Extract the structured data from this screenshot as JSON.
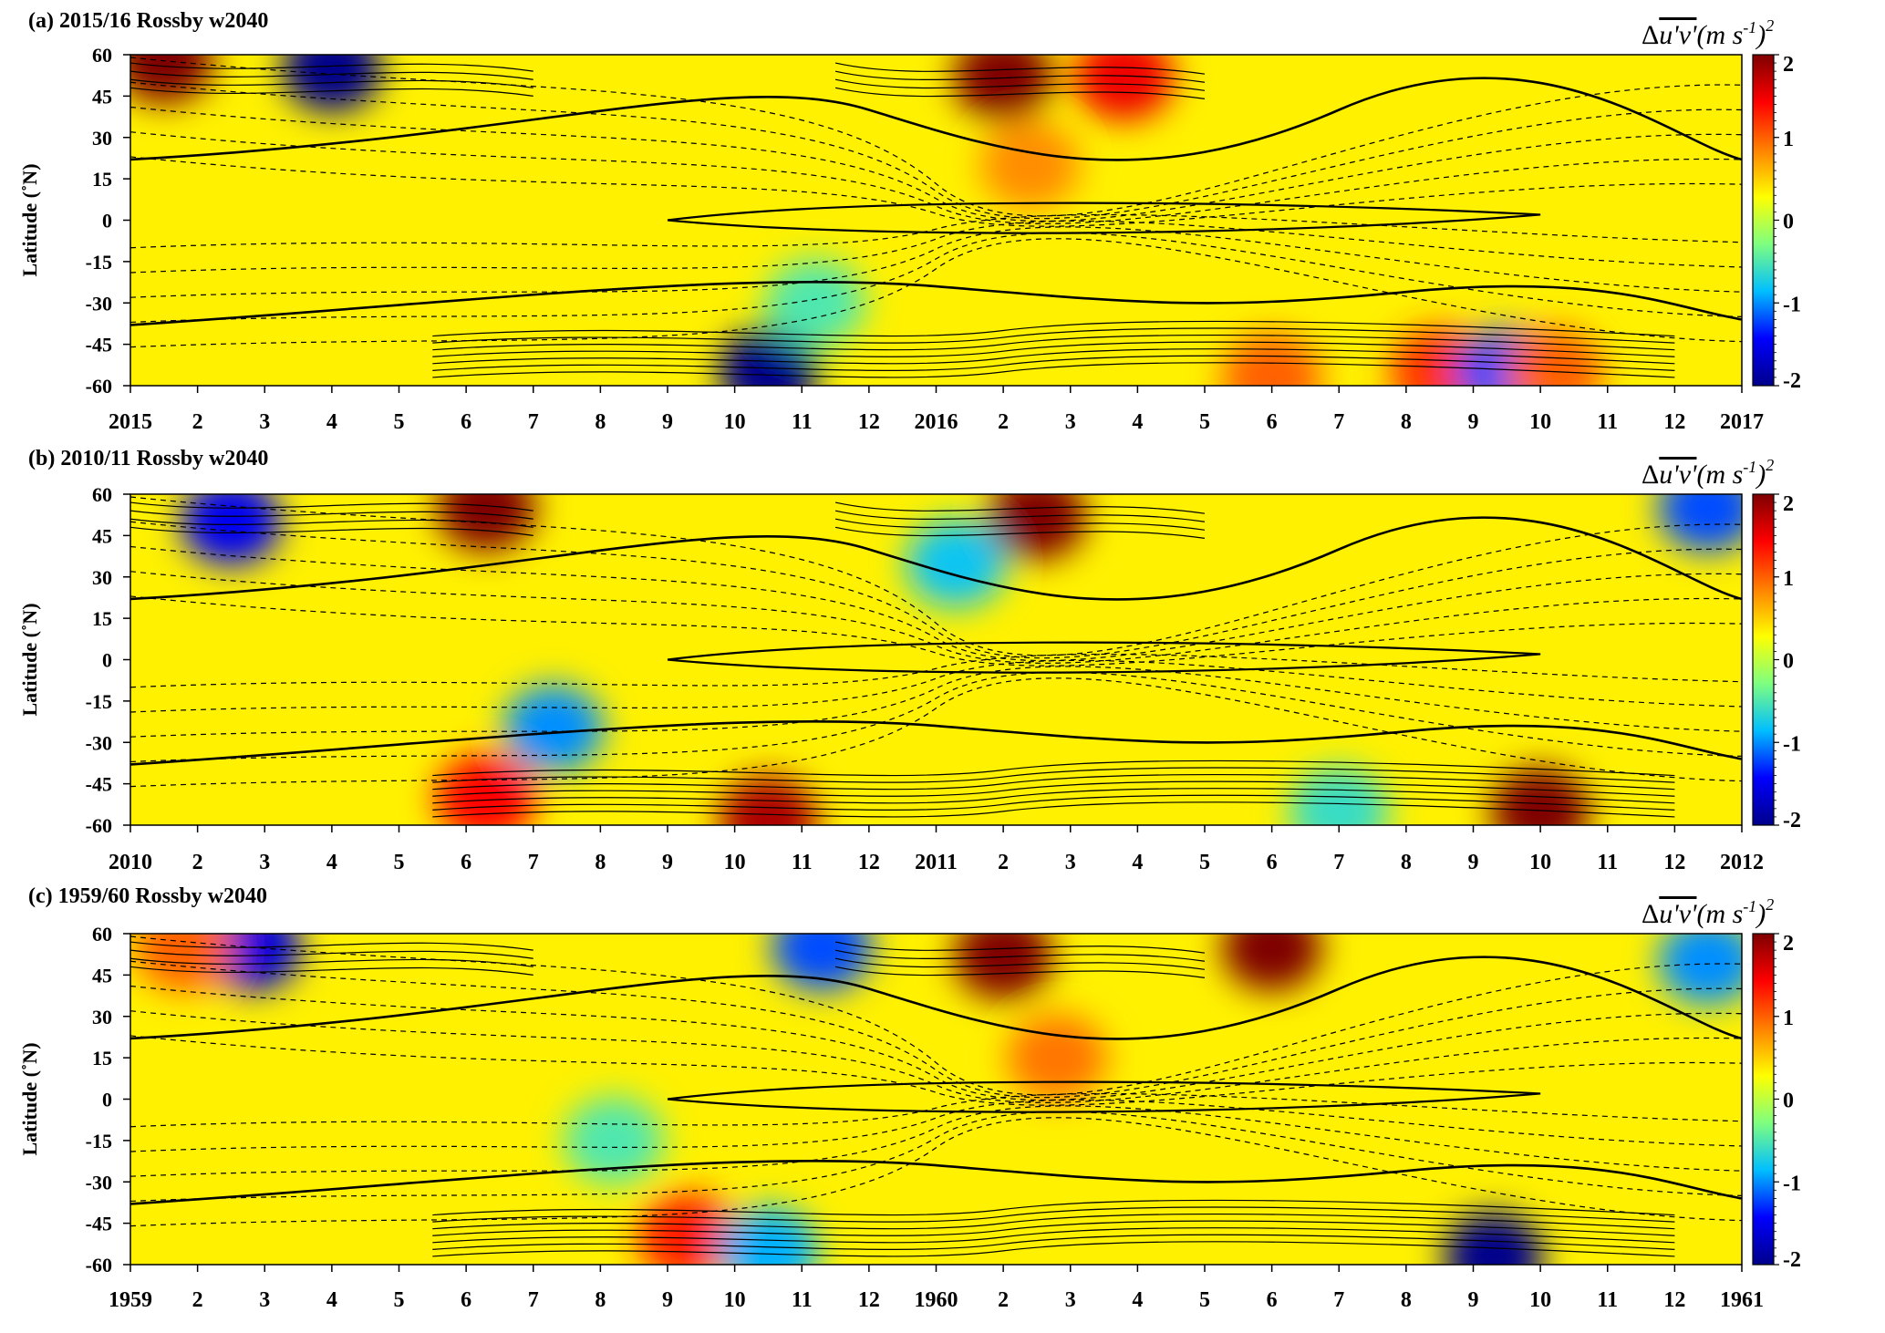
{
  "figure": {
    "colorbar_ticks": [
      "2",
      "1",
      "0",
      "-1",
      "-2"
    ],
    "colorbar_colors": [
      "#00008b",
      "#0000ff",
      "#00bfff",
      "#7fff7f",
      "#ffff00",
      "#ff8000",
      "#ff0000",
      "#7f0000"
    ],
    "ylabel": "Latitude (˚N)",
    "cbar_label_prefix": "Δ",
    "cbar_label_overbar": "u'v'",
    "cbar_label_suffix": "(m s",
    "cbar_label_exp": "-1",
    "cbar_label_tail": ")",
    "cbar_label_sq": "2"
  },
  "chart_data": [
    {
      "type": "heatmap",
      "title": "(a) 2015/16 Rossby w2040",
      "x_tick_labels": [
        "2015",
        "2",
        "3",
        "4",
        "5",
        "6",
        "7",
        "8",
        "9",
        "10",
        "11",
        "12",
        "2016",
        "2",
        "3",
        "4",
        "5",
        "6",
        "7",
        "8",
        "9",
        "10",
        "11",
        "12",
        "2017"
      ],
      "y_tick_labels": [
        "60",
        "45",
        "30",
        "15",
        "0",
        "-15",
        "-30",
        "-45",
        "-60"
      ],
      "ylim": [
        -60,
        60
      ],
      "colorbar_range": [
        -2,
        2
      ],
      "features": [
        {
          "month": 0.5,
          "lat": 58,
          "value": 2
        },
        {
          "month": 3.0,
          "lat": 55,
          "value": -2
        },
        {
          "month": 13.0,
          "lat": 52,
          "value": 2
        },
        {
          "month": 13.4,
          "lat": 20,
          "value": 0.8
        },
        {
          "month": 14.8,
          "lat": 52,
          "value": 1.5
        },
        {
          "month": 9.5,
          "lat": -55,
          "value": -2
        },
        {
          "month": 10.2,
          "lat": -30,
          "value": -0.5
        },
        {
          "month": 19.5,
          "lat": -55,
          "value": 1.2
        },
        {
          "month": 20.5,
          "lat": -55,
          "value": -1.2
        },
        {
          "month": 21.2,
          "lat": -55,
          "value": 1.0
        },
        {
          "month": 17.0,
          "lat": -57,
          "value": 1.0
        }
      ]
    },
    {
      "type": "heatmap",
      "title": "(b) 2010/11 Rossby w2040",
      "x_tick_labels": [
        "2010",
        "2",
        "3",
        "4",
        "5",
        "6",
        "7",
        "8",
        "9",
        "10",
        "11",
        "12",
        "2011",
        "2",
        "3",
        "4",
        "5",
        "6",
        "7",
        "8",
        "9",
        "10",
        "11",
        "12",
        "2012"
      ],
      "y_tick_labels": [
        "60",
        "45",
        "30",
        "15",
        "0",
        "-15",
        "-30",
        "-45",
        "-60"
      ],
      "ylim": [
        -60,
        60
      ],
      "colorbar_range": [
        -2,
        2
      ],
      "features": [
        {
          "month": 1.5,
          "lat": 50,
          "value": -1.5
        },
        {
          "month": 5.3,
          "lat": 55,
          "value": 2
        },
        {
          "month": 13.5,
          "lat": 52,
          "value": 2.5
        },
        {
          "month": 12.3,
          "lat": 35,
          "value": -0.8
        },
        {
          "month": 23.5,
          "lat": 55,
          "value": -1.2
        },
        {
          "month": 6.3,
          "lat": -25,
          "value": -1.0
        },
        {
          "month": 5.3,
          "lat": -50,
          "value": 1.4
        },
        {
          "month": 9.5,
          "lat": -58,
          "value": 1.8
        },
        {
          "month": 21.0,
          "lat": -55,
          "value": 2.2
        },
        {
          "month": 18.0,
          "lat": -55,
          "value": -0.6
        }
      ]
    },
    {
      "type": "heatmap",
      "title": "(c) 1959/60 Rossby w2040",
      "x_tick_labels": [
        "1959",
        "2",
        "3",
        "4",
        "5",
        "6",
        "7",
        "8",
        "9",
        "10",
        "11",
        "12",
        "1960",
        "2",
        "3",
        "4",
        "5",
        "6",
        "7",
        "8",
        "9",
        "10",
        "11",
        "12",
        "1961"
      ],
      "y_tick_labels": [
        "60",
        "45",
        "30",
        "15",
        "0",
        "-15",
        "-30",
        "-45",
        "-60"
      ],
      "ylim": [
        -60,
        60
      ],
      "colorbar_range": [
        -2,
        2
      ],
      "features": [
        {
          "month": 1.8,
          "lat": 55,
          "value": -1.6
        },
        {
          "month": 0.8,
          "lat": 55,
          "value": 1.0
        },
        {
          "month": 13.0,
          "lat": 52,
          "value": 2.5
        },
        {
          "month": 13.8,
          "lat": 15,
          "value": 0.9
        },
        {
          "month": 17.0,
          "lat": 55,
          "value": 2.0
        },
        {
          "month": 10.3,
          "lat": 55,
          "value": -1.2
        },
        {
          "month": 23.5,
          "lat": 50,
          "value": -1.0
        },
        {
          "month": 8.3,
          "lat": -50,
          "value": 1.3
        },
        {
          "month": 9.5,
          "lat": -55,
          "value": -0.9
        },
        {
          "month": 20.3,
          "lat": -57,
          "value": -2.0
        },
        {
          "month": 7.2,
          "lat": -15,
          "value": -0.5
        }
      ]
    }
  ]
}
